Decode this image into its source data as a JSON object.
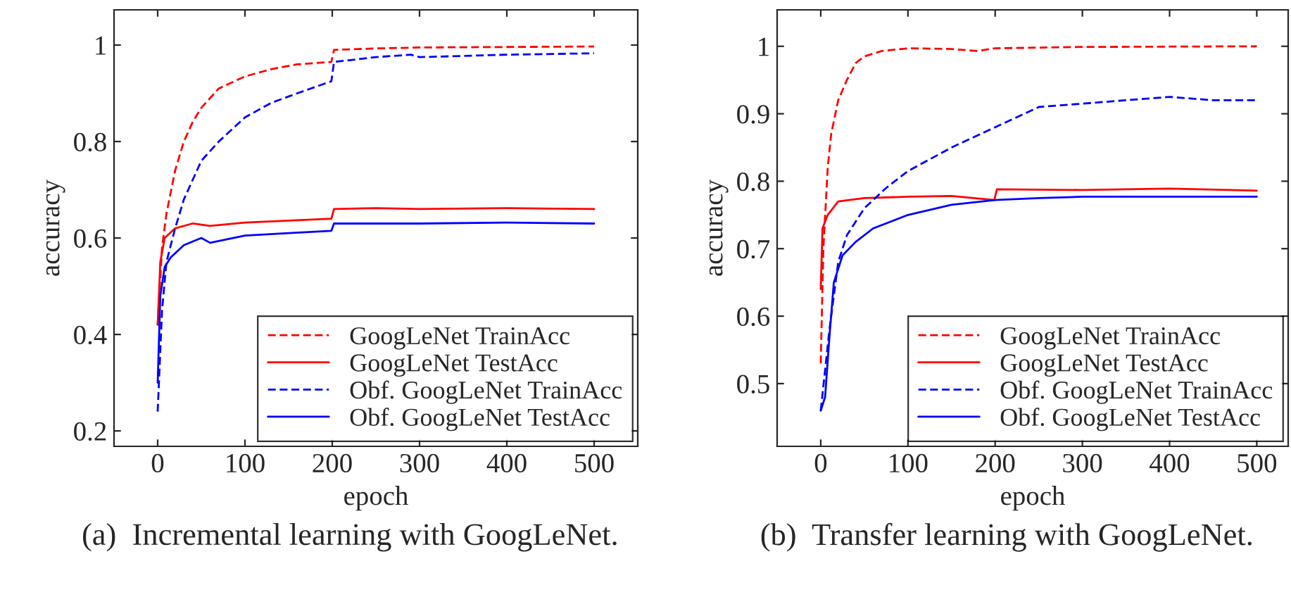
{
  "chart_data": [
    {
      "type": "line",
      "xlabel": "epoch",
      "ylabel": "accuracy",
      "xlim": [
        -50,
        550
      ],
      "ylim": [
        0.168,
        1.073
      ],
      "xticks": [
        0,
        100,
        200,
        300,
        400,
        500
      ],
      "yticks": [
        {
          "value": 0.2,
          "label": "0.2"
        },
        {
          "value": 0.4,
          "label": "0.4"
        },
        {
          "value": 0.6,
          "label": "0.6"
        },
        {
          "value": 0.8,
          "label": "0.8"
        },
        {
          "value": 1,
          "label": "1"
        }
      ],
      "legend": "bottom right",
      "grid": false,
      "annotations": [
        "(a)  Incremental learning with GoogLeNet."
      ],
      "series": [
        {
          "name": "GoogLeNet TrainAcc",
          "color": "#ff0000",
          "line_style": "dashed",
          "x": [
            0,
            5,
            10,
            20,
            30,
            40,
            50,
            70,
            100,
            130,
            160,
            199,
            202,
            250,
            300,
            400,
            500
          ],
          "values": [
            0.42,
            0.58,
            0.65,
            0.74,
            0.8,
            0.84,
            0.87,
            0.91,
            0.935,
            0.95,
            0.96,
            0.965,
            0.99,
            0.993,
            0.995,
            0.996,
            0.997
          ]
        },
        {
          "name": "GoogLeNet TestAcc",
          "color": "#ff0000",
          "line_style": "solid",
          "x": [
            0,
            3,
            8,
            20,
            40,
            60,
            100,
            150,
            199,
            202,
            250,
            300,
            400,
            500
          ],
          "values": [
            0.42,
            0.55,
            0.6,
            0.62,
            0.63,
            0.625,
            0.632,
            0.636,
            0.64,
            0.66,
            0.662,
            0.66,
            0.662,
            0.66
          ]
        },
        {
          "name": "Obf. GoogLeNet TrainAcc",
          "color": "#0000ff",
          "line_style": "dashed",
          "x": [
            0,
            5,
            10,
            20,
            30,
            50,
            70,
            100,
            130,
            160,
            199,
            202,
            250,
            290,
            300,
            400,
            500
          ],
          "values": [
            0.24,
            0.45,
            0.55,
            0.62,
            0.68,
            0.76,
            0.8,
            0.85,
            0.88,
            0.9,
            0.925,
            0.965,
            0.975,
            0.98,
            0.975,
            0.98,
            0.983
          ]
        },
        {
          "name": "Obf. GoogLeNet TestAcc",
          "color": "#0000ff",
          "line_style": "solid",
          "x": [
            0,
            3,
            8,
            15,
            30,
            50,
            60,
            100,
            150,
            199,
            202,
            300,
            400,
            500
          ],
          "values": [
            0.3,
            0.48,
            0.54,
            0.56,
            0.585,
            0.6,
            0.59,
            0.605,
            0.61,
            0.615,
            0.63,
            0.63,
            0.632,
            0.63
          ]
        }
      ]
    },
    {
      "type": "line",
      "xlabel": "epoch",
      "ylabel": "accuracy",
      "xlim": [
        -50,
        536
      ],
      "ylim": [
        0.407,
        1.054
      ],
      "xticks": [
        0,
        100,
        200,
        300,
        400,
        500
      ],
      "yticks": [
        {
          "value": 0.5,
          "label": "0.5"
        },
        {
          "value": 0.6,
          "label": "0.6"
        },
        {
          "value": 0.7,
          "label": "0.7"
        },
        {
          "value": 0.8,
          "label": "0.8"
        },
        {
          "value": 0.9,
          "label": "0.9"
        },
        {
          "value": 1,
          "label": "1"
        }
      ],
      "legend": "bottom right",
      "grid": false,
      "annotations": [
        "(b)  Transfer learning with GoogLeNet."
      ],
      "series": [
        {
          "name": "GoogLeNet TrainAcc",
          "color": "#ff0000",
          "line_style": "dashed",
          "x": [
            0,
            3,
            8,
            12,
            20,
            30,
            40,
            50,
            70,
            100,
            150,
            180,
            200,
            300,
            500
          ],
          "values": [
            0.53,
            0.7,
            0.82,
            0.87,
            0.92,
            0.95,
            0.975,
            0.985,
            0.993,
            0.997,
            0.996,
            0.993,
            0.997,
            0.999,
            1.0
          ]
        },
        {
          "name": "GoogLeNet TestAcc",
          "color": "#ff0000",
          "line_style": "solid",
          "x": [
            0,
            2,
            8,
            20,
            50,
            100,
            150,
            199,
            202,
            300,
            400,
            500
          ],
          "values": [
            0.64,
            0.73,
            0.75,
            0.77,
            0.775,
            0.777,
            0.778,
            0.772,
            0.788,
            0.787,
            0.789,
            0.786
          ]
        },
        {
          "name": "Obf. GoogLeNet TrainAcc",
          "color": "#0000ff",
          "line_style": "dashed",
          "x": [
            0,
            10,
            20,
            30,
            50,
            75,
            100,
            150,
            200,
            250,
            300,
            350,
            400,
            450,
            500
          ],
          "values": [
            0.46,
            0.58,
            0.68,
            0.72,
            0.76,
            0.79,
            0.815,
            0.85,
            0.88,
            0.91,
            0.915,
            0.92,
            0.925,
            0.92,
            0.92
          ]
        },
        {
          "name": "Obf. GoogLeNet TestAcc",
          "color": "#0000ff",
          "line_style": "solid",
          "x": [
            0,
            5,
            10,
            15,
            25,
            40,
            60,
            100,
            150,
            200,
            250,
            300,
            400,
            500
          ],
          "values": [
            0.46,
            0.48,
            0.57,
            0.65,
            0.69,
            0.71,
            0.73,
            0.75,
            0.765,
            0.772,
            0.775,
            0.777,
            0.777,
            0.777
          ]
        }
      ]
    }
  ]
}
